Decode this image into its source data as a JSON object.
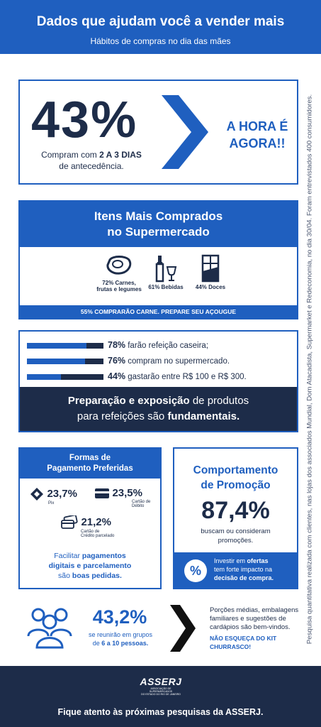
{
  "header": {
    "title": "Dados que ajudam você a vender mais",
    "subtitle": "Hábitos de compras no dia das mães"
  },
  "sidebar_note": "Pesquisa quantitativa realizada com clientes, nas lojas dos associados Mundial, Dom Atacadista, Supermarket e Redeconomia, no dia 30/04. Foram entrevistados 400 consumidores.",
  "section1": {
    "big_number": "43%",
    "caption_pre": "Compram com ",
    "caption_bold": "2 A 3 DIAS",
    "caption_post": "de antecedência.",
    "cta_line1": "A HORA É",
    "cta_line2": "AGORA!!"
  },
  "section2": {
    "title_line1": "Itens Mais Comprados",
    "title_line2": "no Supermercado",
    "items": [
      {
        "label_line1": "72% Carnes,",
        "label_line2": "frutas e legumes",
        "icon": "steak-icon"
      },
      {
        "label_line1": "61% Bebidas",
        "label_line2": "",
        "icon": "wine-bottle-icon"
      },
      {
        "label_line1": "44% Doces",
        "label_line2": "",
        "icon": "chocolate-bar-icon"
      }
    ],
    "footer": "55% COMPRARÃO CARNE. PREPARE SEU AÇOUGUE"
  },
  "section3": {
    "bars": [
      {
        "pct_label": "78%",
        "text": " farão refeição caseira;",
        "value": 78
      },
      {
        "pct_label": "76%",
        "text": " compram no supermercado.",
        "value": 76
      },
      {
        "pct_label": "44%",
        "text": " gastarão entre R$ 100 e R$ 300.",
        "value": 44
      }
    ],
    "note_bold1": "Preparação e exposição",
    "note_mid": " de produtos",
    "note_line2_pre": "para refeições são ",
    "note_bold2": "fundamentais."
  },
  "section4": {
    "title_line1": "Formas de",
    "title_line2": "Pagamento Preferidas",
    "pix_value": "23,7%",
    "pix_label": "Pix",
    "debit_value": "23,5%",
    "debit_label": "Cartão de Débito",
    "credit_value": "21,2%",
    "credit_label1": "Cartão de",
    "credit_label2": "Crédito parcelado",
    "note_pre": "Facilitar ",
    "note_b1": "pagamentos",
    "note_b2": "digitais e parcelamento",
    "note_mid": "são ",
    "note_b3": "boas pedidas."
  },
  "section5": {
    "title_line1": "Comportamento",
    "title_line2": "de Promoção",
    "pct": "87,4%",
    "desc_line1": "buscam ou consideram",
    "desc_line2": "promoções.",
    "box_pre": "Investir em ",
    "box_b1": "ofertas",
    "box_mid": "tem forte impacto na",
    "box_b2": "decisão de compra.",
    "box_icon": "%"
  },
  "section6": {
    "pct": "43,2%",
    "sub_pre": "se reunirão em grupos",
    "sub_line2_pre": "de ",
    "sub_bold": "6 a 10 pessoas.",
    "right_text1": "Porções médias, embalagens",
    "right_text2": "familiares e sugestões de",
    "right_text3": "cardápios são bem-vindos.",
    "reminder": "NÃO ESQUEÇA DO KIT CHURRASCO!"
  },
  "footer": {
    "logo_text": "ASSERJ",
    "logo_sub1": "ASSOCIAÇÃO DE SUPERMERCADOS",
    "logo_sub2": "DO ESTADO DO RIO DE JANEIRO",
    "text": "Fique atento às próximas pesquisas da ASSERJ."
  },
  "colors": {
    "blue": "#1f5fbf",
    "navy": "#1d2c49",
    "white": "#ffffff"
  }
}
